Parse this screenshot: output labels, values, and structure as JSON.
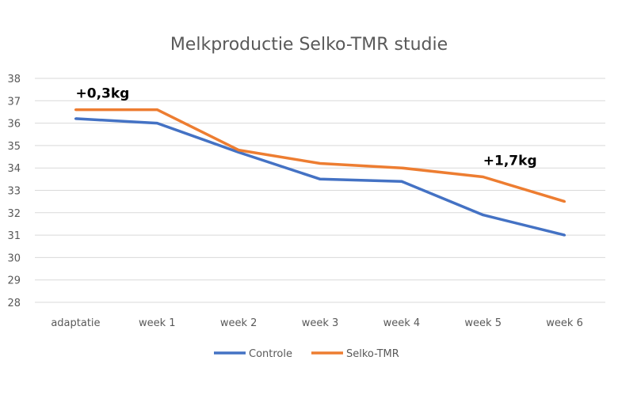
{
  "chart_data": {
    "type": "line",
    "title": "Melkproductie Selko-TMR studie",
    "xlabel": "",
    "ylabel": "",
    "categories": [
      "adaptatie",
      "week 1",
      "week 2",
      "week 3",
      "week 4",
      "week 5",
      "week 6"
    ],
    "ylim": [
      28,
      38
    ],
    "yticks": [
      "28",
      "29",
      "30",
      "31",
      "32",
      "33",
      "34",
      "35",
      "36",
      "37",
      "38"
    ],
    "grid": true,
    "legend_position": "bottom",
    "series": [
      {
        "name": "Controle",
        "color": "#4472C4",
        "values": [
          36.2,
          36.0,
          34.7,
          33.5,
          33.4,
          31.9,
          31.0
        ]
      },
      {
        "name": "Selko-TMR",
        "color": "#ED7D31",
        "values": [
          36.6,
          36.6,
          34.8,
          34.2,
          34.0,
          33.6,
          32.5
        ]
      }
    ],
    "annotations": [
      {
        "text": "+0,3kg",
        "category": "adaptatie",
        "y": 37.35
      },
      {
        "text": "+1,7kg",
        "category": "week 5",
        "y": 34.35
      }
    ]
  }
}
